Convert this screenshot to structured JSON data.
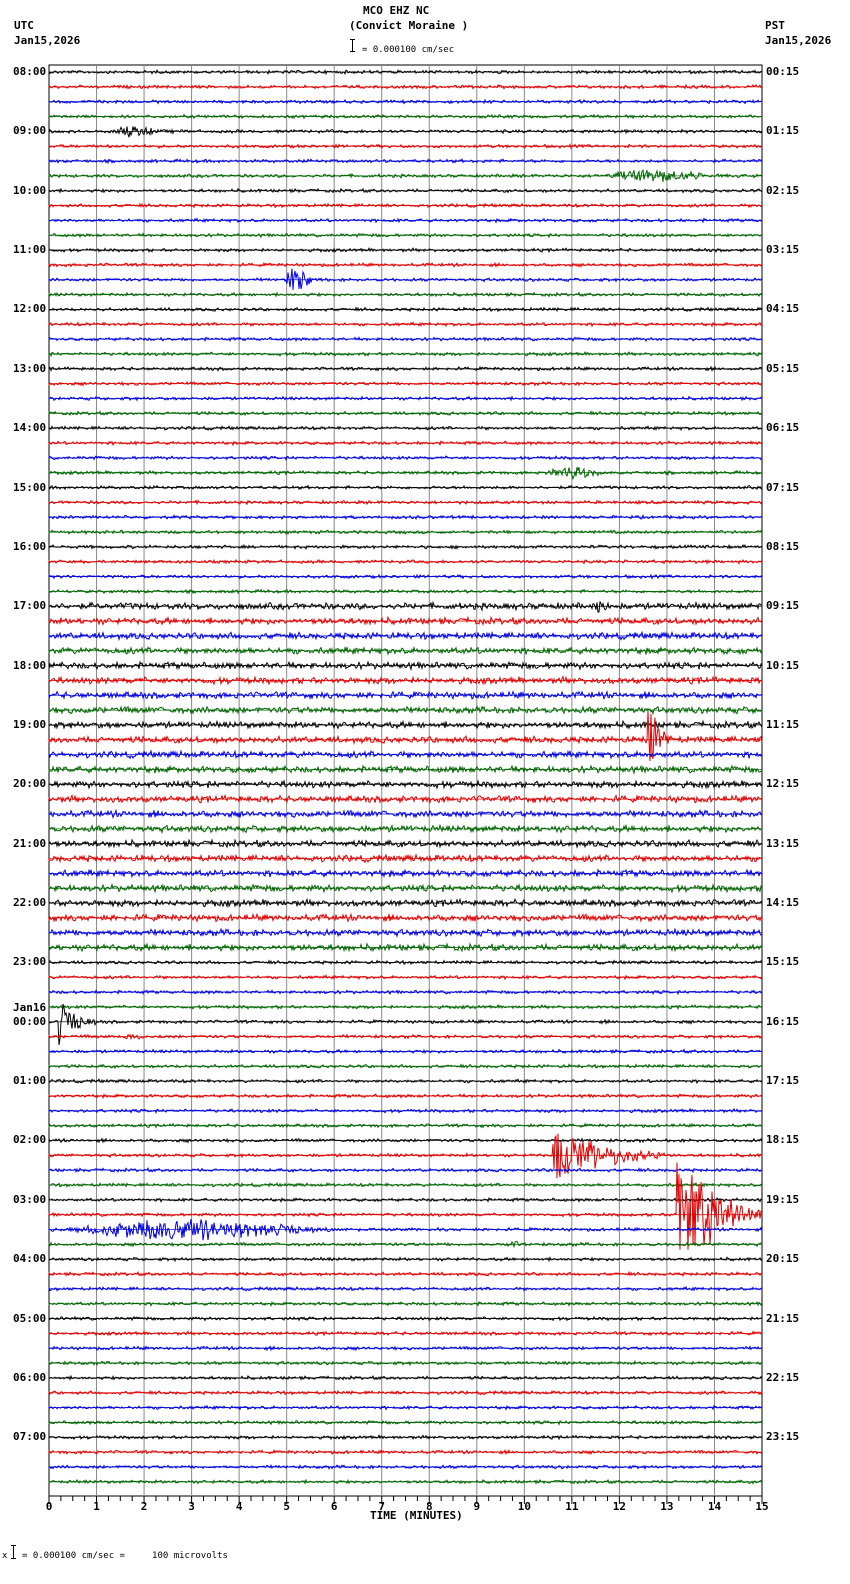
{
  "header": {
    "station": "MCO EHZ NC",
    "site": "(Convict Moraine )",
    "scale": "= 0.000100 cm/sec",
    "left_tz": "UTC",
    "left_date": "Jan15,2026",
    "right_tz": "PST",
    "right_date": "Jan15,2026"
  },
  "footer": {
    "scale_note": "= 0.000100 cm/sec =     100 microvolts",
    "prefix": "x"
  },
  "chart_data": {
    "type": "line",
    "title": "MCO EHZ NC (Convict Moraine )",
    "xlabel": "TIME (MINUTES)",
    "ylabel": "",
    "xlim": [
      0,
      15
    ],
    "x_ticks": [
      "0",
      "1",
      "2",
      "3",
      "4",
      "5",
      "6",
      "7",
      "8",
      "9",
      "10",
      "11",
      "12",
      "13",
      "14",
      "15"
    ],
    "grid": true,
    "trace_colors": [
      "#000000",
      "#e00000",
      "#0000e0",
      "#006400"
    ],
    "traces_per_hour": 4,
    "num_traces": 96,
    "left_labels": [
      {
        "row": 0,
        "text": "08:00"
      },
      {
        "row": 4,
        "text": "09:00"
      },
      {
        "row": 8,
        "text": "10:00"
      },
      {
        "row": 12,
        "text": "11:00"
      },
      {
        "row": 16,
        "text": "12:00"
      },
      {
        "row": 20,
        "text": "13:00"
      },
      {
        "row": 24,
        "text": "14:00"
      },
      {
        "row": 28,
        "text": "15:00"
      },
      {
        "row": 32,
        "text": "16:00"
      },
      {
        "row": 36,
        "text": "17:00"
      },
      {
        "row": 40,
        "text": "18:00"
      },
      {
        "row": 44,
        "text": "19:00"
      },
      {
        "row": 48,
        "text": "20:00"
      },
      {
        "row": 52,
        "text": "21:00"
      },
      {
        "row": 56,
        "text": "22:00"
      },
      {
        "row": 60,
        "text": "23:00"
      },
      {
        "row": 64,
        "text": "00:00",
        "date": "Jan16"
      },
      {
        "row": 68,
        "text": "01:00"
      },
      {
        "row": 72,
        "text": "02:00"
      },
      {
        "row": 76,
        "text": "03:00"
      },
      {
        "row": 80,
        "text": "04:00"
      },
      {
        "row": 84,
        "text": "05:00"
      },
      {
        "row": 88,
        "text": "06:00"
      },
      {
        "row": 92,
        "text": "07:00"
      }
    ],
    "right_labels": [
      {
        "row": 0,
        "text": "00:15"
      },
      {
        "row": 4,
        "text": "01:15"
      },
      {
        "row": 8,
        "text": "02:15"
      },
      {
        "row": 12,
        "text": "03:15"
      },
      {
        "row": 16,
        "text": "04:15"
      },
      {
        "row": 20,
        "text": "05:15"
      },
      {
        "row": 24,
        "text": "06:15"
      },
      {
        "row": 28,
        "text": "07:15"
      },
      {
        "row": 32,
        "text": "08:15"
      },
      {
        "row": 36,
        "text": "09:15"
      },
      {
        "row": 40,
        "text": "10:15"
      },
      {
        "row": 44,
        "text": "11:15"
      },
      {
        "row": 48,
        "text": "12:15"
      },
      {
        "row": 52,
        "text": "13:15"
      },
      {
        "row": 56,
        "text": "14:15"
      },
      {
        "row": 60,
        "text": "15:15"
      },
      {
        "row": 64,
        "text": "16:15"
      },
      {
        "row": 68,
        "text": "17:15"
      },
      {
        "row": 72,
        "text": "18:15"
      },
      {
        "row": 76,
        "text": "19:15"
      },
      {
        "row": 80,
        "text": "20:15"
      },
      {
        "row": 84,
        "text": "21:15"
      },
      {
        "row": 88,
        "text": "22:15"
      },
      {
        "row": 92,
        "text": "23:15"
      }
    ],
    "noise_by_row_range": [
      {
        "from": 0,
        "to": 35,
        "amp": 1.6
      },
      {
        "from": 36,
        "to": 59,
        "amp": 3.2
      },
      {
        "from": 60,
        "to": 95,
        "amp": 1.6
      }
    ],
    "events": [
      {
        "row": 4,
        "start": 1.2,
        "dur": 1.6,
        "amp": 9
      },
      {
        "row": 7,
        "start": 11.5,
        "dur": 3.5,
        "amp": 10
      },
      {
        "row": 14,
        "start": 4.95,
        "dur": 0.8,
        "amp": 26
      },
      {
        "row": 27,
        "start": 10.4,
        "dur": 1.8,
        "amp": 10
      },
      {
        "row": 36,
        "start": 11.4,
        "dur": 0.6,
        "amp": 10
      },
      {
        "row": 45,
        "start": 12.6,
        "dur": 0.5,
        "amp": 50,
        "spike": true
      },
      {
        "row": 64,
        "start": 0.2,
        "dur": 0.8,
        "amp": 30,
        "spike": true
      },
      {
        "row": 65,
        "start": 1.4,
        "dur": 1.0,
        "amp": 5
      },
      {
        "row": 73,
        "start": 10.6,
        "dur": 2.4,
        "amp": 35,
        "spike": true
      },
      {
        "row": 77,
        "start": 13.2,
        "dur": 1.8,
        "amp": 80,
        "spike": true
      },
      {
        "row": 78,
        "start": 0.2,
        "dur": 8.0,
        "amp": 16
      },
      {
        "row": 79,
        "start": 9.6,
        "dur": 0.5,
        "amp": 5
      }
    ]
  }
}
